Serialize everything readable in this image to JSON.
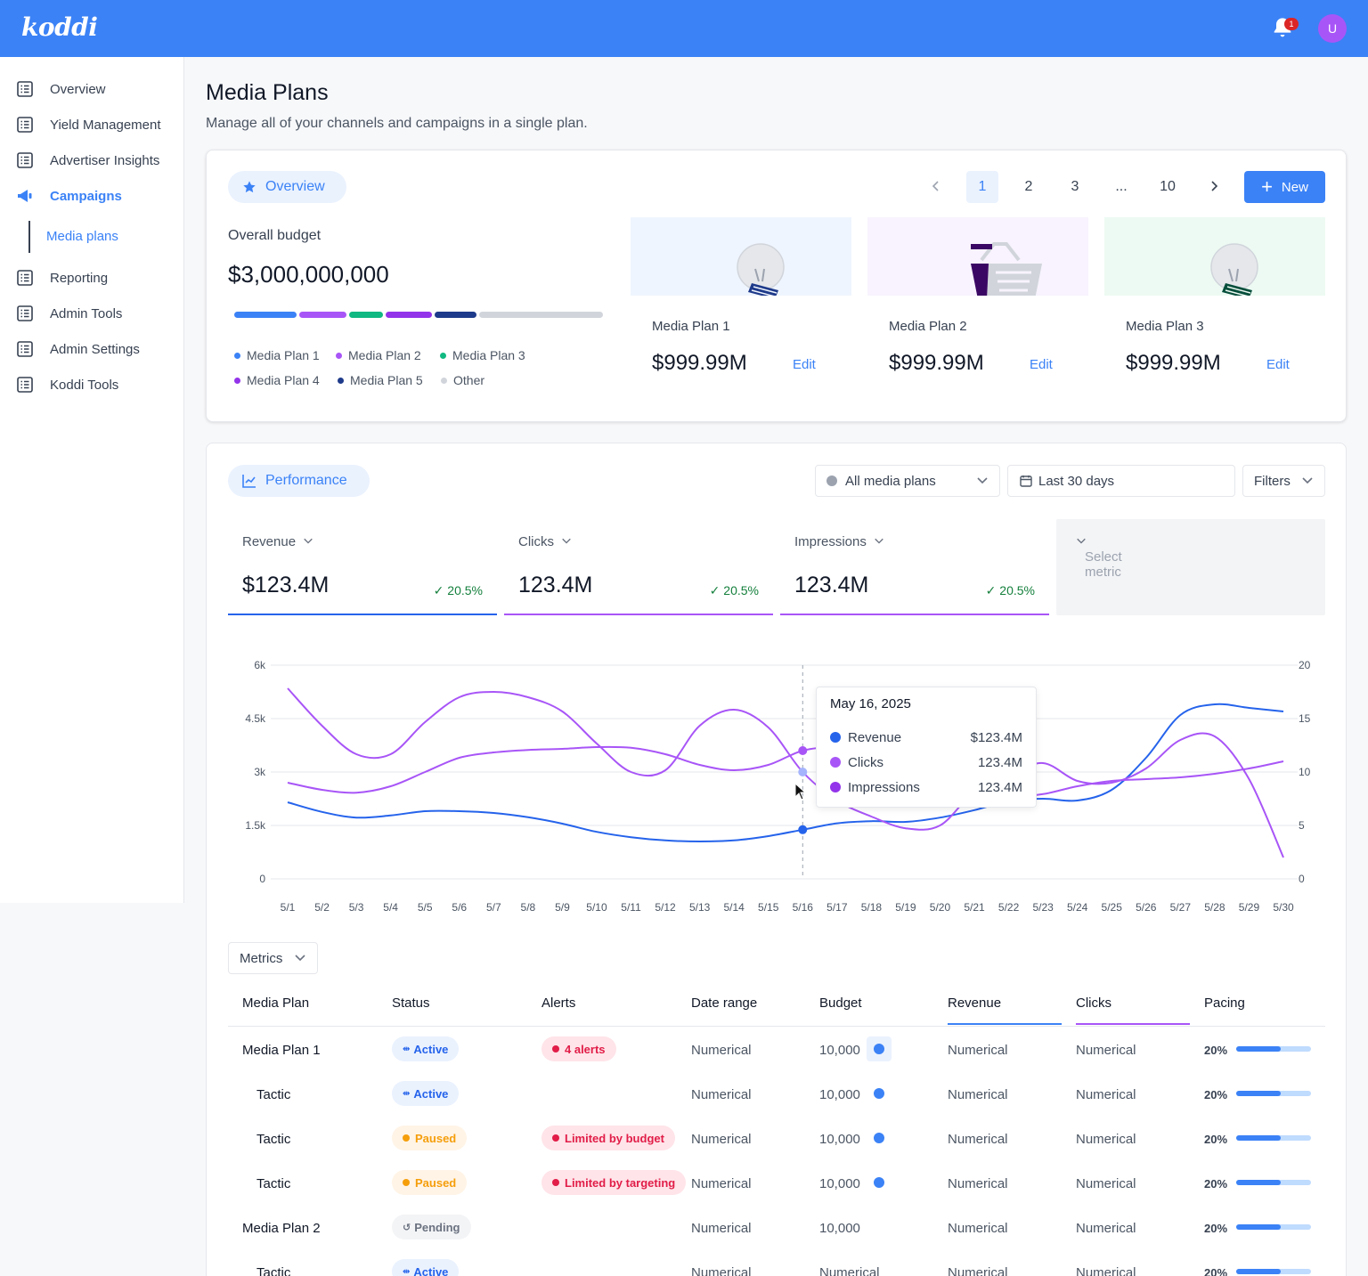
{
  "app": {
    "logo_text": "koddi",
    "notification_count": "1",
    "avatar_initial": "U",
    "brand_color": "#3b82f6"
  },
  "sidebar": {
    "items": [
      {
        "label": "Overview",
        "icon": "list-icon"
      },
      {
        "label": "Yield Management",
        "icon": "list-icon"
      },
      {
        "label": "Advertiser Insights",
        "icon": "list-icon"
      },
      {
        "label": "Campaigns",
        "icon": "megaphone-icon",
        "active": true
      },
      {
        "label": "Reporting",
        "icon": "list-icon"
      },
      {
        "label": "Admin Tools",
        "icon": "list-icon"
      },
      {
        "label": "Admin Settings",
        "icon": "list-icon"
      },
      {
        "label": "Koddi Tools",
        "icon": "list-icon"
      }
    ],
    "sub_item": "Media plans"
  },
  "page": {
    "title": "Media Plans",
    "subtitle": "Manage all of your channels and campaigns in a single plan."
  },
  "overview": {
    "pill_label": "Overview",
    "pagination": [
      "1",
      "2",
      "3",
      "...",
      "10"
    ],
    "current_page": "1",
    "new_label": "New",
    "budget_label": "Overall budget",
    "budget_value": "$3,000,000,000",
    "budget_bar_colors": [
      "#3b82f6",
      "#a855f7",
      "#10b981",
      "#9333ea",
      "#1e3a8a",
      "#d1d5db"
    ],
    "legend": [
      {
        "label": "Media Plan 1",
        "color": "#3b82f6"
      },
      {
        "label": "Media Plan 2",
        "color": "#a855f7"
      },
      {
        "label": "Media Plan 3",
        "color": "#10b981"
      },
      {
        "label": "Media Plan 4",
        "color": "#9333ea"
      },
      {
        "label": "Media Plan 5",
        "color": "#1e3a8a"
      },
      {
        "label": "Other",
        "color": "#d1d5db"
      }
    ],
    "plans": [
      {
        "name": "Media Plan 1",
        "amount": "$999.99M",
        "edit": "Edit",
        "image": "lightbulb-illustration",
        "bg": "#eff5fe"
      },
      {
        "name": "Media Plan 2",
        "amount": "$999.99M",
        "edit": "Edit",
        "image": "shopping-basket-illustration",
        "bg": "#f8f3fe"
      },
      {
        "name": "Media Plan 3",
        "amount": "$999.99M",
        "edit": "Edit",
        "image": "lightbulb-illustration",
        "bg": "#edfaf3"
      }
    ]
  },
  "performance": {
    "pill_label": "Performance",
    "plan_filter": "All media plans",
    "date_filter": "Last 30 days",
    "filters_label": "Filters",
    "metrics": [
      {
        "name": "Revenue",
        "value": "$123.4M",
        "delta": "20.5%",
        "color": "#2563eb"
      },
      {
        "name": "Clicks",
        "value": "123.4M",
        "delta": "20.5%",
        "color": "#a855f7"
      },
      {
        "name": "Impressions",
        "value": "123.4M",
        "delta": "20.5%",
        "color": "#a855f7"
      }
    ],
    "select_metric": "Select metric",
    "tooltip": {
      "date": "May 16, 2025",
      "rows": [
        {
          "label": "Revenue",
          "value": "$123.4M",
          "color": "#2563eb"
        },
        {
          "label": "Clicks",
          "value": "123.4M",
          "color": "#a855f7"
        },
        {
          "label": "Impressions",
          "value": "123.4M",
          "color": "#9333ea"
        }
      ]
    },
    "metrics_button": "Metrics"
  },
  "chart_data": {
    "type": "line",
    "x": [
      "5/1",
      "5/2",
      "5/3",
      "5/4",
      "5/5",
      "5/6",
      "5/7",
      "5/8",
      "5/9",
      "5/10",
      "5/11",
      "5/12",
      "5/13",
      "5/14",
      "5/15",
      "5/16",
      "5/17",
      "5/18",
      "5/19",
      "5/20",
      "5/21",
      "5/22",
      "5/23",
      "5/24",
      "5/25",
      "5/26",
      "5/27",
      "5/28",
      "5/29",
      "5/30"
    ],
    "y_left_ticks": [
      "0",
      "1.5k",
      "3k",
      "4.5k",
      "6k"
    ],
    "y_left_range": [
      0,
      6000
    ],
    "y_right_ticks": [
      "0",
      "5",
      "10",
      "15",
      "20"
    ],
    "y_right_range": [
      0,
      20
    ],
    "grid": true,
    "highlight_x": "5/16",
    "series": [
      {
        "name": "Revenue",
        "axis": "left",
        "color": "#2563eb",
        "values": [
          2150,
          1880,
          1720,
          1780,
          1900,
          1900,
          1850,
          1730,
          1550,
          1320,
          1170,
          1080,
          1050,
          1080,
          1200,
          1380,
          1560,
          1620,
          1600,
          1720,
          1930,
          2180,
          2250,
          2200,
          2500,
          3400,
          4600,
          4900,
          4800,
          4700
        ]
      },
      {
        "name": "Clicks",
        "axis": "left",
        "color": "#a855f7",
        "values": [
          2700,
          2500,
          2420,
          2600,
          3000,
          3400,
          3550,
          3620,
          3650,
          3700,
          3680,
          3500,
          3200,
          3050,
          3200,
          3600,
          3700,
          3600,
          3350,
          2950,
          2500,
          2300,
          2380,
          2600,
          2750,
          2800,
          2850,
          2950,
          3100,
          3300
        ]
      },
      {
        "name": "Impressions",
        "axis": "left",
        "color": "#a855f7",
        "values": [
          5350,
          4300,
          3500,
          3500,
          4400,
          5100,
          5250,
          5100,
          4700,
          3800,
          3000,
          3050,
          4300,
          4750,
          4250,
          3000,
          2200,
          1750,
          1420,
          1500,
          2450,
          2900,
          3250,
          2750,
          2700,
          3100,
          3900,
          4000,
          2800,
          600
        ]
      }
    ]
  },
  "table": {
    "headers": [
      "Media Plan",
      "Status",
      "Alerts",
      "Date range",
      "Budget",
      "Revenue",
      "Clicks",
      "Pacing"
    ],
    "rows": [
      {
        "name": "Media Plan 1",
        "status": "Active",
        "status_kind": "active",
        "alert": "4 alerts",
        "date": "Numerical",
        "budget": "10,000",
        "smile": "boxed",
        "revenue": "Numerical",
        "clicks": "Numerical",
        "pacing": "20%",
        "pacing_fill": 0.6
      },
      {
        "name": "Tactic",
        "status": "Active",
        "status_kind": "active",
        "alert": "",
        "date": "Numerical",
        "budget": "10,000",
        "smile": "plain",
        "revenue": "Numerical",
        "clicks": "Numerical",
        "pacing": "20%",
        "pacing_fill": 0.6
      },
      {
        "name": "Tactic",
        "status": "Paused",
        "status_kind": "paused",
        "alert": "Limited by budget",
        "date": "Numerical",
        "budget": "10,000",
        "smile": "plain",
        "revenue": "Numerical",
        "clicks": "Numerical",
        "pacing": "20%",
        "pacing_fill": 0.6
      },
      {
        "name": "Tactic",
        "status": "Paused",
        "status_kind": "paused",
        "alert": "Limited by targeting",
        "date": "Numerical",
        "budget": "10,000",
        "smile": "plain",
        "revenue": "Numerical",
        "clicks": "Numerical",
        "pacing": "20%",
        "pacing_fill": 0.6
      },
      {
        "name": "Media Plan 2",
        "status": "Pending",
        "status_kind": "pending",
        "alert": "",
        "date": "Numerical",
        "budget": "10,000",
        "smile": "none",
        "revenue": "Numerical",
        "clicks": "Numerical",
        "pacing": "20%",
        "pacing_fill": 0.6
      },
      {
        "name": "Tactic",
        "status": "Active",
        "status_kind": "active",
        "alert": "",
        "date": "Numerical",
        "budget": "Numerical",
        "smile": "none",
        "revenue": "Numerical",
        "clicks": "Numerical",
        "pacing": "20%",
        "pacing_fill": 0.6
      }
    ]
  }
}
